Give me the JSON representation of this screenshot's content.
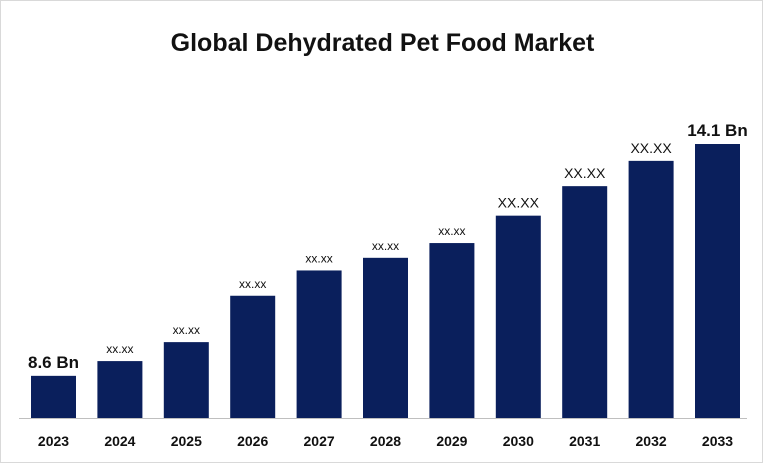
{
  "chart_data": {
    "type": "bar",
    "title": "Global Dehydrated Pet Food Market",
    "categories": [
      "2023",
      "2024",
      "2025",
      "2026",
      "2027",
      "2028",
      "2029",
      "2030",
      "2031",
      "2032",
      "2033"
    ],
    "values": [
      8.6,
      8.95,
      9.4,
      10.5,
      11.1,
      11.4,
      11.75,
      12.4,
      13.1,
      13.7,
      14.1
    ],
    "data_labels": [
      "8.6 Bn",
      "xx.xx",
      "xx.xx",
      "xx.xx",
      "xx.xx",
      "xx.xx",
      "xx.xx",
      "XX.XX",
      "XX.XX",
      "XX.XX",
      "14.1 Bn"
    ],
    "bar_color": "#0a1f5c",
    "ylim": [
      7.6,
      14.5
    ],
    "grid": false,
    "legend": "none"
  }
}
